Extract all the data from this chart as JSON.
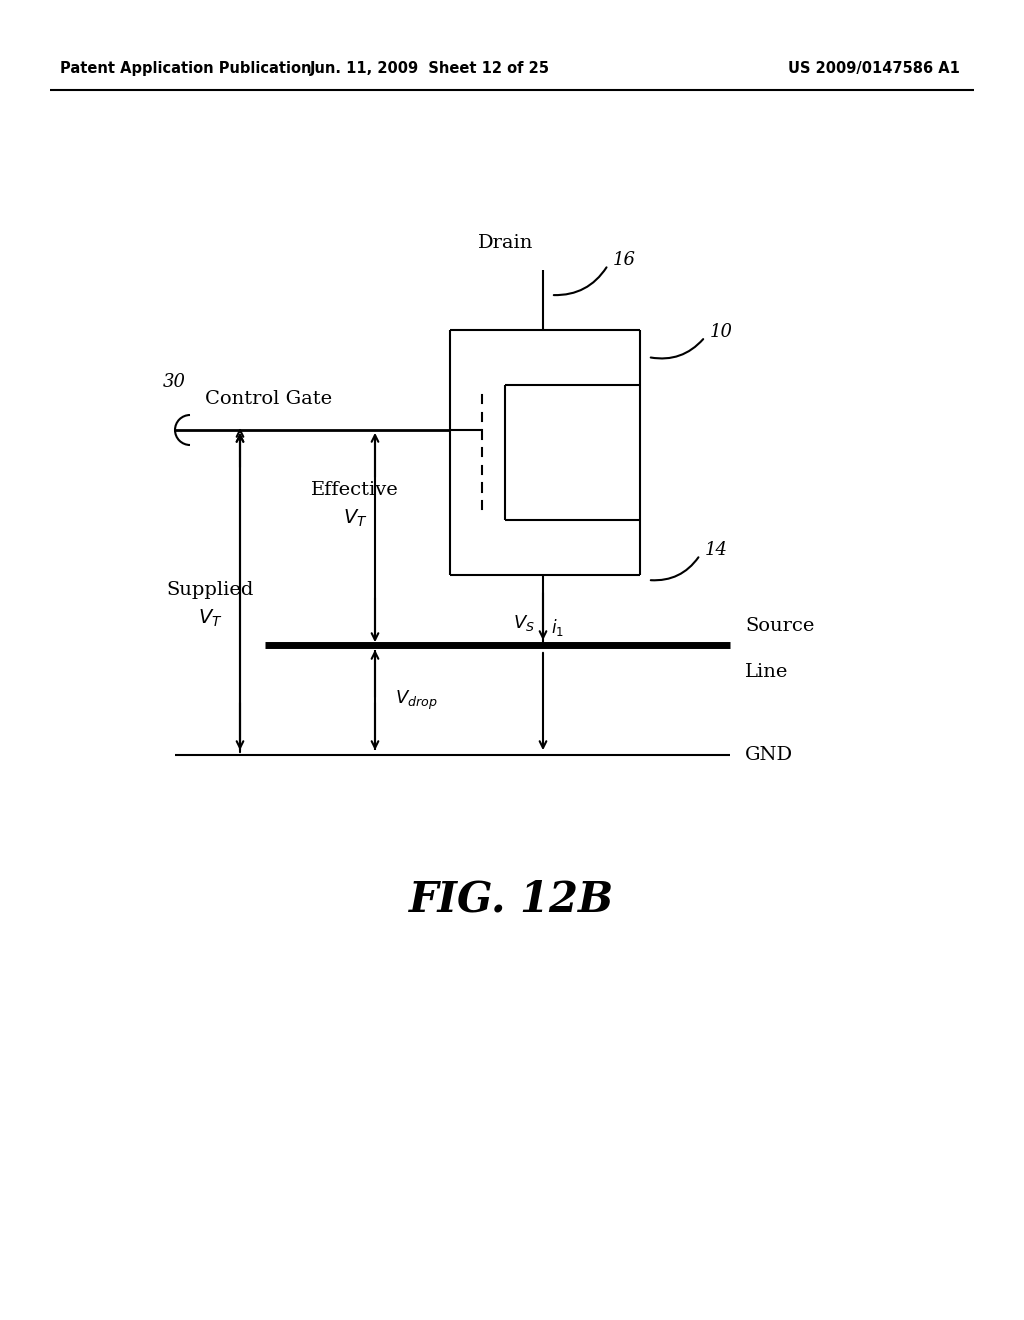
{
  "bg_color": "#ffffff",
  "header_left": "Patent Application Publication",
  "header_mid": "Jun. 11, 2009  Sheet 12 of 25",
  "header_right": "US 2009/0147586 A1",
  "fig_label": "FIG. 12B",
  "header_fontsize": 10.5,
  "fig_label_fontsize": 30,
  "line_color": "#000000",
  "thick_lw": 5.0,
  "thin_lw": 1.5,
  "med_lw": 2.0
}
